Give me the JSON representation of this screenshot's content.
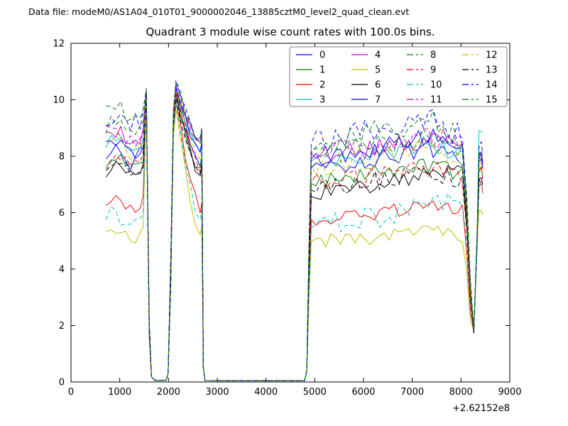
{
  "figure": {
    "header": "Data file: modeM0/AS1A04_010T01_9000002046_13885cztM0_level2_quad_clean.evt"
  },
  "chart_data": {
    "type": "line",
    "title": "Quadrant 3 module wise count rates with 100.0s bins.",
    "xlabel": "",
    "ylabel": "",
    "xlim": [
      0,
      9000
    ],
    "ylim": [
      0,
      12
    ],
    "xticks": [
      0,
      1000,
      2000,
      3000,
      4000,
      5000,
      6000,
      7000,
      8000,
      9000
    ],
    "yticks": [
      0,
      2,
      4,
      6,
      8,
      10,
      12
    ],
    "x_offset_text": "+2.62152e8",
    "bin_seconds": 100,
    "grid": false,
    "legend": {
      "position": "upper-right",
      "ncols": 4,
      "entries": [
        "0",
        "1",
        "2",
        "3",
        "4",
        "5",
        "6",
        "7",
        "8",
        "9",
        "10",
        "11",
        "12",
        "13",
        "14",
        "15"
      ]
    },
    "features": {
      "data_start_x": 720,
      "spike1": {
        "x": 1545,
        "peak": 10.2
      },
      "gap1": {
        "x_start": 1660,
        "x_end": 1980,
        "value": 0.05
      },
      "burst2": {
        "x_rise": 2000,
        "x_peak": 2150,
        "peak": 10.5,
        "x_drop": 2720
      },
      "gap2": {
        "x_start": 2750,
        "x_end": 4800,
        "value": 0.03
      },
      "segment3": {
        "x_start": 4850,
        "x_end": 8450
      },
      "dip": {
        "x": 8262,
        "min": 1.8,
        "x_recover": 8330
      },
      "data_end_x": 8446
    },
    "series": [
      {
        "name": "0",
        "color": "#0000ff",
        "linestyle": "solid",
        "seg1_level": 8.0,
        "seg3_start": 7.5,
        "seg3_mid": 8.3,
        "seg3_end": 7.8,
        "post_dip": 7.8,
        "noise": 0.3
      },
      {
        "name": "1",
        "color": "#008000",
        "linestyle": "solid",
        "seg1_level": 7.7,
        "seg3_start": 7.1,
        "seg3_mid": 7.7,
        "seg3_end": 7.3,
        "post_dip": 7.5,
        "noise": 0.28
      },
      {
        "name": "2",
        "color": "#ff0000",
        "linestyle": "solid",
        "seg1_level": 6.3,
        "seg3_start": 5.7,
        "seg3_mid": 6.3,
        "seg3_end": 6.0,
        "post_dip": 6.9,
        "noise": 0.25
      },
      {
        "name": "3",
        "color": "#00bfbf",
        "linestyle": "solid",
        "seg1_level": 8.5,
        "seg3_start": 7.7,
        "seg3_mid": 8.5,
        "seg3_end": 8.0,
        "post_dip": 8.9,
        "noise": 0.3,
        "flat_end": true
      },
      {
        "name": "4",
        "color": "#bf00bf",
        "linestyle": "solid",
        "seg1_level": 8.7,
        "seg3_start": 8.0,
        "seg3_mid": 8.6,
        "seg3_end": 8.3,
        "post_dip": 7.9,
        "noise": 0.3
      },
      {
        "name": "5",
        "color": "#bfbf00",
        "linestyle": "solid",
        "seg1_level": 5.3,
        "seg3_start": 5.0,
        "seg3_mid": 5.3,
        "seg3_end": 5.2,
        "post_dip": 6.1,
        "noise": 0.25
      },
      {
        "name": "6",
        "color": "#000000",
        "linestyle": "solid",
        "seg1_level": 7.5,
        "seg3_start": 6.6,
        "seg3_mid": 7.4,
        "seg3_end": 7.7,
        "post_dip": 7.2,
        "noise": 0.3
      },
      {
        "name": "7",
        "color": "#0000ff",
        "linestyle": "solid",
        "seg1_level": 8.3,
        "seg3_start": 7.8,
        "seg3_mid": 8.7,
        "seg3_end": 8.1,
        "post_dip": 8.0,
        "noise": 0.32
      },
      {
        "name": "8",
        "color": "#008000",
        "linestyle": "dashed",
        "seg1_level": 8.9,
        "seg3_start": 8.0,
        "seg3_mid": 8.8,
        "seg3_end": 8.3,
        "post_dip": 8.1,
        "noise": 0.4
      },
      {
        "name": "9",
        "color": "#ff0000",
        "linestyle": "dashed",
        "seg1_level": 7.8,
        "seg3_start": 7.0,
        "seg3_mid": 7.5,
        "seg3_end": 7.2,
        "post_dip": 7.4,
        "noise": 0.35
      },
      {
        "name": "10",
        "color": "#00bfbf",
        "linestyle": "dashed",
        "seg1_level": 5.8,
        "seg3_start": 5.5,
        "seg3_mid": 6.2,
        "seg3_end": 6.6,
        "post_dip": 7.0,
        "noise": 0.38
      },
      {
        "name": "11",
        "color": "#bf00bf",
        "linestyle": "dashed",
        "seg1_level": 8.8,
        "seg3_start": 8.1,
        "seg3_mid": 8.7,
        "seg3_end": 8.4,
        "post_dip": 8.0,
        "noise": 0.38
      },
      {
        "name": "12",
        "color": "#bfbf00",
        "linestyle": "dashed",
        "seg1_level": 8.3,
        "seg3_start": 7.6,
        "seg3_mid": 8.3,
        "seg3_end": 8.0,
        "post_dip": 7.6,
        "noise": 0.36
      },
      {
        "name": "13",
        "color": "#000000",
        "linestyle": "dashed",
        "seg1_level": 7.6,
        "seg3_start": 6.9,
        "seg3_mid": 7.4,
        "seg3_end": 7.1,
        "post_dip": 7.2,
        "noise": 0.34
      },
      {
        "name": "14",
        "color": "#0000ff",
        "linestyle": "dashed",
        "seg1_level": 9.3,
        "seg3_start": 8.4,
        "seg3_mid": 9.4,
        "seg3_end": 8.7,
        "post_dip": 8.3,
        "noise": 0.44
      },
      {
        "name": "15",
        "color": "#008000",
        "linestyle": "dashed",
        "seg1_level": 9.5,
        "seg3_start": 8.3,
        "seg3_mid": 9.3,
        "seg3_end": 8.5,
        "post_dip": 8.2,
        "noise": 0.44
      }
    ],
    "colors": {
      "axis": "#000000",
      "background": "#ffffff",
      "legend_border": "#7f7f7f"
    }
  }
}
